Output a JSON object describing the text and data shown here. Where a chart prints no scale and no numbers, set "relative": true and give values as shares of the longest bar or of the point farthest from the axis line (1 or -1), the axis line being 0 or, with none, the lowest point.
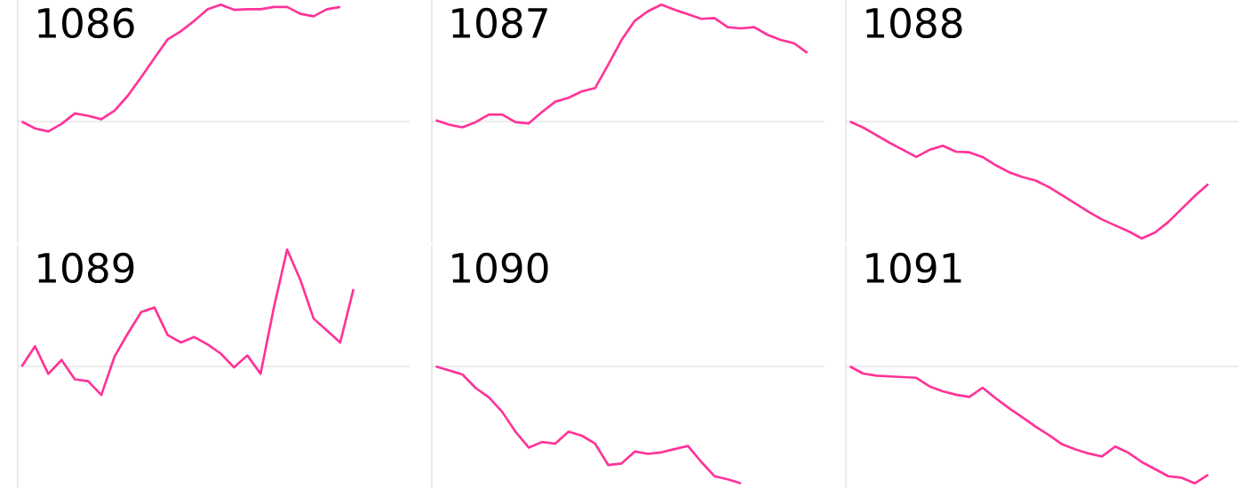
{
  "chart_data": [
    {
      "type": "line",
      "title": "1086",
      "relative": true,
      "color": "#ff3399",
      "categories": [
        null,
        null,
        null,
        null,
        null,
        null,
        null,
        null,
        null,
        null,
        null,
        null,
        null,
        null,
        null,
        null,
        null,
        null,
        null,
        null,
        null,
        null,
        null,
        null,
        null,
        null,
        null,
        null,
        null,
        null
      ],
      "values": [
        0,
        -0.059,
        -0.084,
        -0.02,
        0.069,
        0.049,
        0.02,
        0.094,
        0.222,
        0.379,
        0.542,
        0.704,
        0.773,
        0.862,
        0.961,
        1,
        0.956,
        0.961,
        0.961,
        0.98,
        0.98,
        0.921,
        0.901,
        0.961,
        0.98,
        null,
        null,
        null,
        null,
        null
      ]
    },
    {
      "type": "line",
      "title": "1087",
      "relative": true,
      "color": "#ff3399",
      "categories": [
        null,
        null,
        null,
        null,
        null,
        null,
        null,
        null,
        null,
        null,
        null,
        null,
        null,
        null,
        null,
        null,
        null,
        null,
        null,
        null,
        null,
        null,
        null,
        null,
        null,
        null,
        null,
        null,
        null,
        null
      ],
      "values": [
        0.011,
        -0.027,
        -0.049,
        -0.005,
        0.06,
        0.06,
        -0.005,
        -0.016,
        0.082,
        0.17,
        0.203,
        0.258,
        0.286,
        0.489,
        0.698,
        0.863,
        0.945,
        1,
        0.956,
        0.918,
        0.879,
        0.885,
        0.808,
        0.797,
        0.808,
        0.742,
        0.698,
        0.67,
        0.588,
        null
      ]
    },
    {
      "type": "line",
      "title": "1088",
      "relative": true,
      "color": "#ff3399",
      "categories": [
        null,
        null,
        null,
        null,
        null,
        null,
        null,
        null,
        null,
        null,
        null,
        null,
        null,
        null,
        null,
        null,
        null,
        null,
        null,
        null,
        null,
        null,
        null,
        null,
        null,
        null,
        null,
        null,
        null,
        null
      ],
      "values": [
        0,
        -0.051,
        -0.116,
        -0.182,
        -0.242,
        -0.303,
        -0.242,
        -0.207,
        -0.258,
        -0.263,
        -0.303,
        -0.374,
        -0.434,
        -0.475,
        -0.505,
        -0.561,
        -0.631,
        -0.702,
        -0.773,
        -0.838,
        -0.889,
        -0.939,
        -1,
        -0.949,
        -0.859,
        -0.747,
        -0.636,
        -0.535,
        null,
        null
      ]
    },
    {
      "type": "line",
      "title": "1089",
      "relative": true,
      "color": "#ff3399",
      "categories": [
        null,
        null,
        null,
        null,
        null,
        null,
        null,
        null,
        null,
        null,
        null,
        null,
        null,
        null,
        null,
        null,
        null,
        null,
        null,
        null,
        null,
        null,
        null,
        null,
        null,
        null,
        null,
        null,
        null,
        null
      ],
      "values": [
        0,
        0.173,
        -0.063,
        0.055,
        -0.11,
        -0.126,
        -0.244,
        0.087,
        0.283,
        0.465,
        0.504,
        0.268,
        0.205,
        0.252,
        0.189,
        0.11,
        -0.008,
        0.094,
        -0.063,
        0.504,
        1,
        0.74,
        0.409,
        0.307,
        0.205,
        0.661,
        null,
        null,
        null,
        null
      ]
    },
    {
      "type": "line",
      "title": "1090",
      "relative": true,
      "color": "#ff3399",
      "categories": [
        null,
        null,
        null,
        null,
        null,
        null,
        null,
        null,
        null,
        null,
        null,
        null,
        null,
        null,
        null,
        null,
        null,
        null,
        null,
        null,
        null,
        null,
        null,
        null,
        null,
        null,
        null,
        null,
        null,
        null
      ],
      "values": [
        0,
        -0.034,
        -0.068,
        -0.184,
        -0.265,
        -0.388,
        -0.558,
        -0.694,
        -0.646,
        -0.66,
        -0.558,
        -0.592,
        -0.66,
        -0.844,
        -0.83,
        -0.728,
        -0.748,
        -0.735,
        -0.707,
        -0.68,
        -0.816,
        -0.939,
        -0.966,
        -1,
        null,
        null,
        null,
        null,
        null,
        null
      ]
    },
    {
      "type": "line",
      "title": "1091",
      "relative": true,
      "color": "#ff3399",
      "categories": [
        null,
        null,
        null,
        null,
        null,
        null,
        null,
        null,
        null,
        null,
        null,
        null,
        null,
        null,
        null,
        null,
        null,
        null,
        null,
        null,
        null,
        null,
        null,
        null,
        null,
        null,
        null,
        null,
        null,
        null
      ],
      "values": [
        0,
        -0.061,
        -0.079,
        -0.085,
        -0.091,
        -0.097,
        -0.17,
        -0.212,
        -0.242,
        -0.261,
        -0.182,
        -0.273,
        -0.358,
        -0.436,
        -0.515,
        -0.588,
        -0.667,
        -0.709,
        -0.745,
        -0.77,
        -0.685,
        -0.739,
        -0.818,
        -0.879,
        -0.939,
        -0.952,
        -1,
        -0.927,
        null,
        null
      ]
    }
  ]
}
